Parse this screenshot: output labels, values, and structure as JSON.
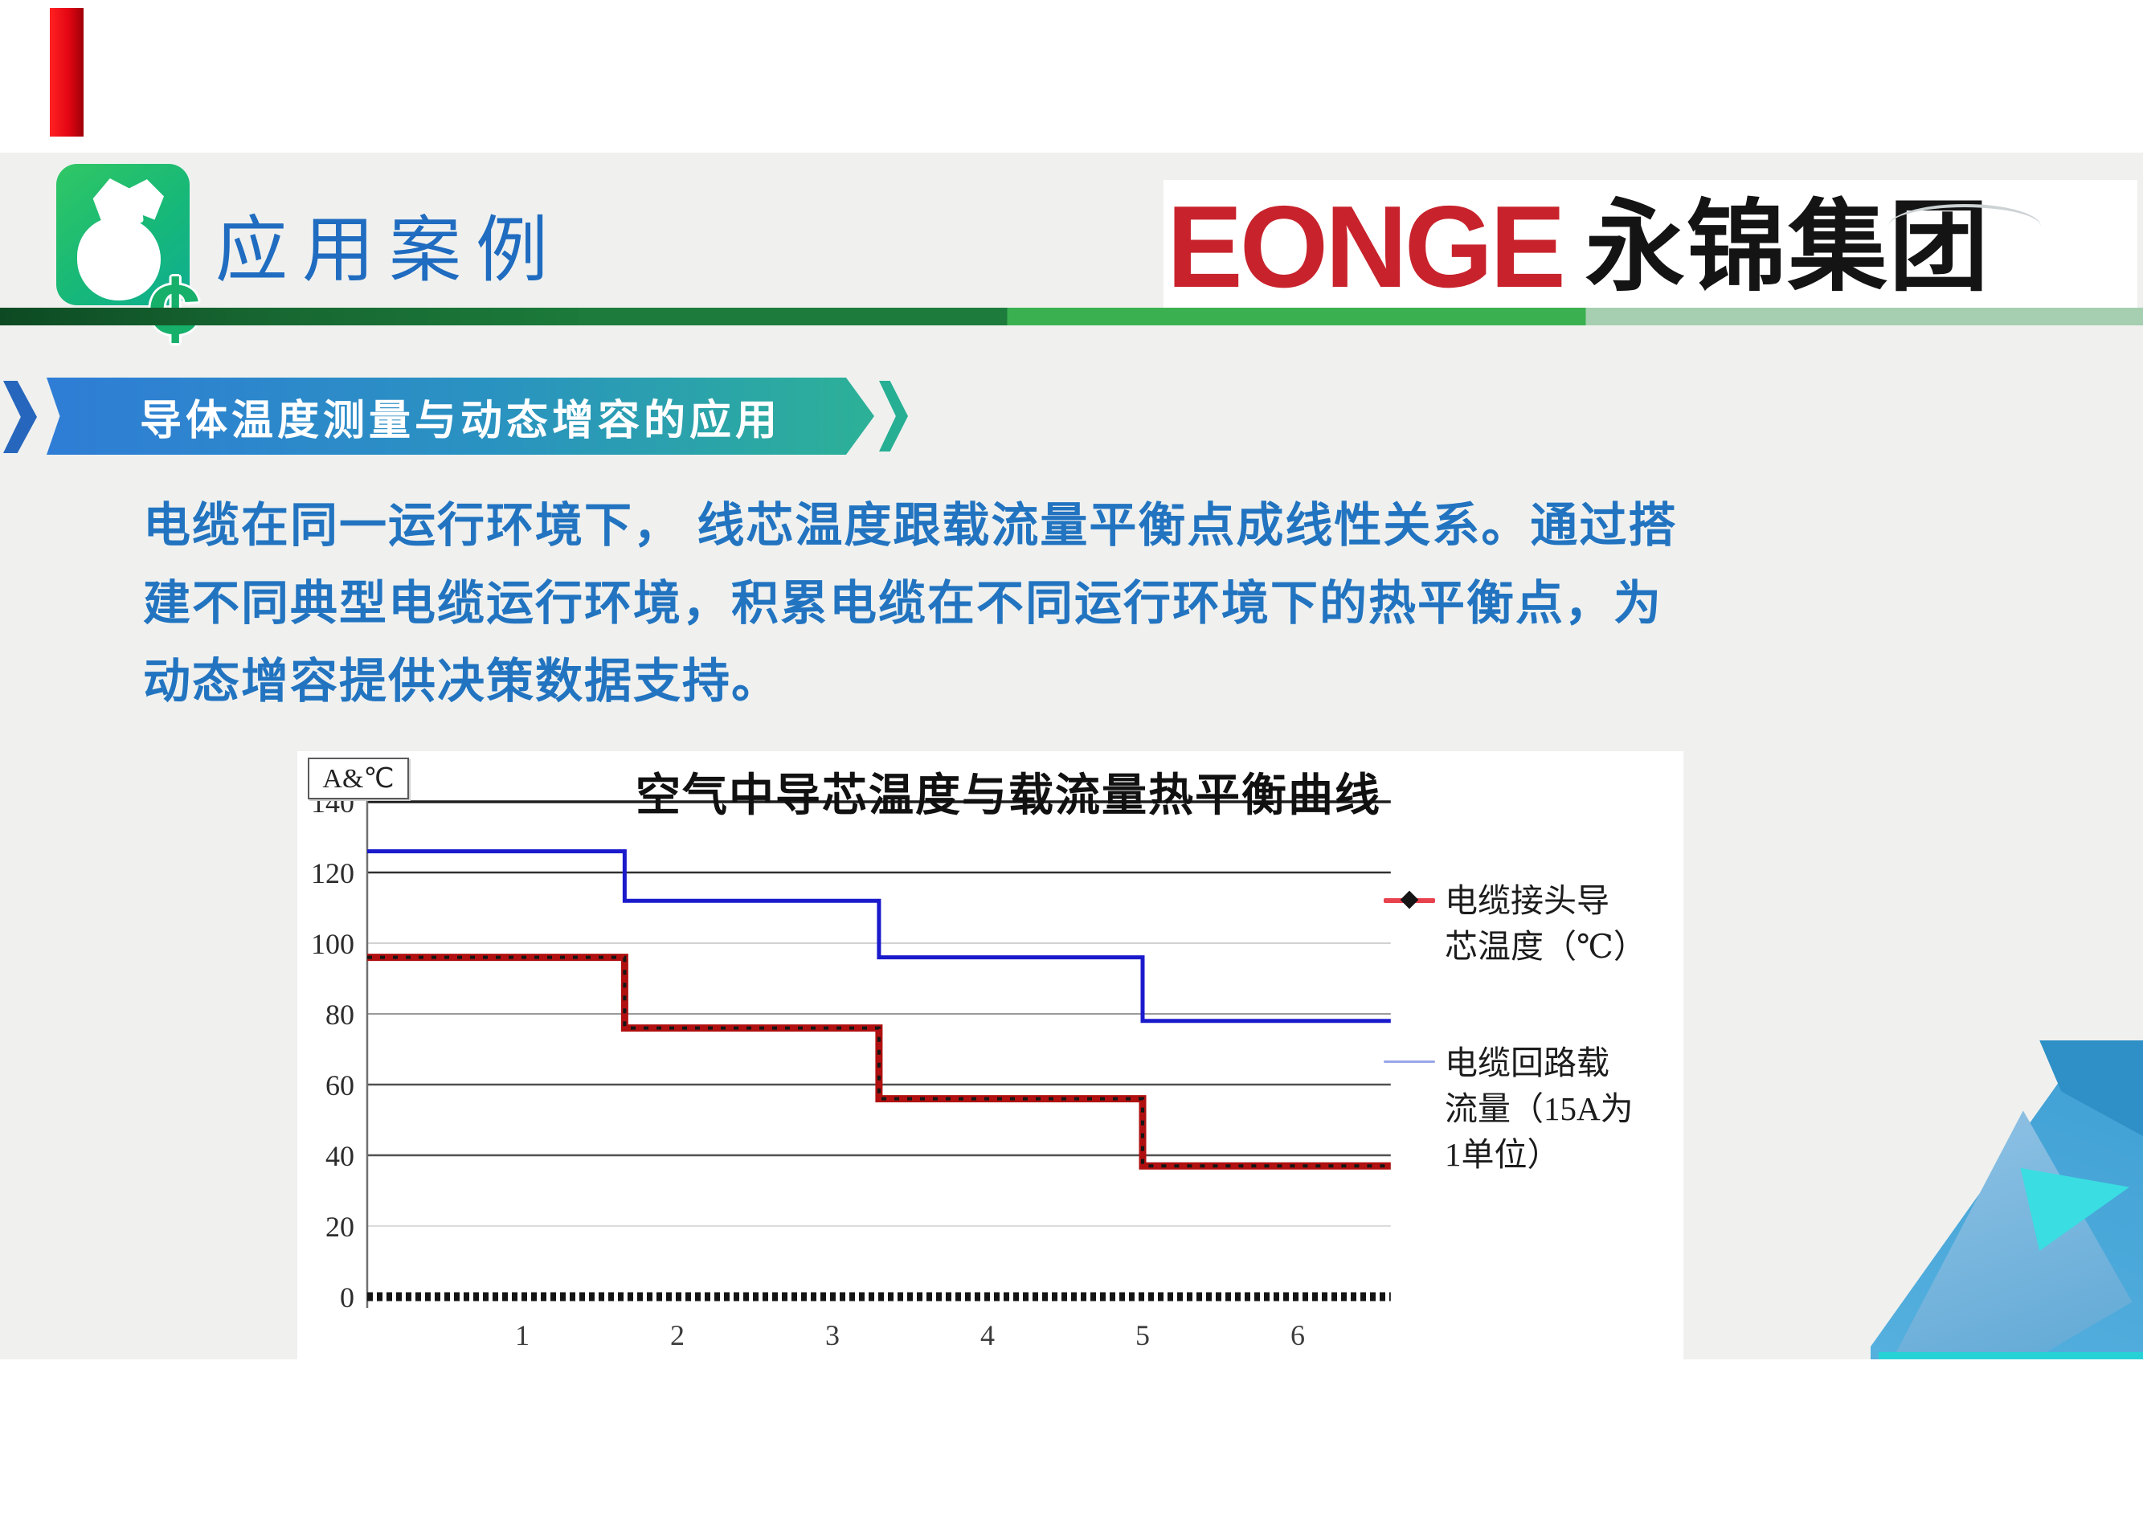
{
  "header": {
    "title": "应用案例",
    "icon": "money-bag-icon",
    "cent_symbol": "¢",
    "logo_en": "EONGE",
    "logo_cn": "永锦集团"
  },
  "section_banner": {
    "label": "导体温度测量与动态增容的应用"
  },
  "paragraph": {
    "lines": [
      "电缆在同一运行环境下， 线芯温度跟载流量平衡点成线性关系。通过搭",
      "建不同典型电缆运行环境，积累电缆在不同运行环境下的热平衡点，为",
      "动态增容提供决策数据支持。"
    ]
  },
  "chart_data": {
    "type": "line",
    "subtype": "step",
    "title": "空气中导芯温度与载流量热平衡曲线",
    "corner_label": "A&℃",
    "xlabel": "",
    "ylabel": "",
    "ylim": [
      0,
      140
    ],
    "y_ticks": [
      0,
      20,
      40,
      60,
      80,
      100,
      120,
      140
    ],
    "x_ticks": [
      1,
      2,
      3,
      4,
      5,
      6
    ],
    "x_range": [
      0,
      6.6
    ],
    "grid": "horizontal",
    "legend_position": "right",
    "series": [
      {
        "name": "电缆接头导芯温度（℃）",
        "legend_lines": [
          "电缆接头导",
          "芯温度（℃）"
        ],
        "color": "#b01010",
        "marker_color": "#151515",
        "marker": "diamond",
        "breakpoints": [
          0,
          1.66,
          3.3,
          5.0,
          6.6
        ],
        "levels": [
          96,
          76,
          56,
          37
        ]
      },
      {
        "name": "电缆回路载流量（15A为1单位）",
        "legend_lines": [
          "电缆回路载",
          "流量（15A为",
          "1单位）"
        ],
        "color": "#1a1acc",
        "marker": "none",
        "breakpoints": [
          0,
          1.66,
          3.3,
          5.0,
          6.6
        ],
        "levels": [
          126,
          112,
          96,
          78
        ]
      }
    ],
    "baseline": {
      "value": 0,
      "style": "dense black dashes"
    }
  },
  "colors": {
    "canvas_gray": "#f0f1ef",
    "title_blue": "#1f6cc0",
    "body_blue": "#2274c0",
    "logo_red": "#c8232c",
    "red_bookmark": "#e30613",
    "green_bar_stops": [
      "#0d4a23",
      "#1d7c3c",
      "#3bb050",
      "#a5cfb0"
    ],
    "banner_gradient": [
      "#2f7dd6",
      "#2cb197"
    ],
    "icon_green_gradient": [
      "#31c765",
      "#0fae92"
    ],
    "decoration_blues": [
      "#3f9fd4",
      "#9ec9e8",
      "#3adde2",
      "#2e90c6",
      "#27d2d7"
    ]
  }
}
